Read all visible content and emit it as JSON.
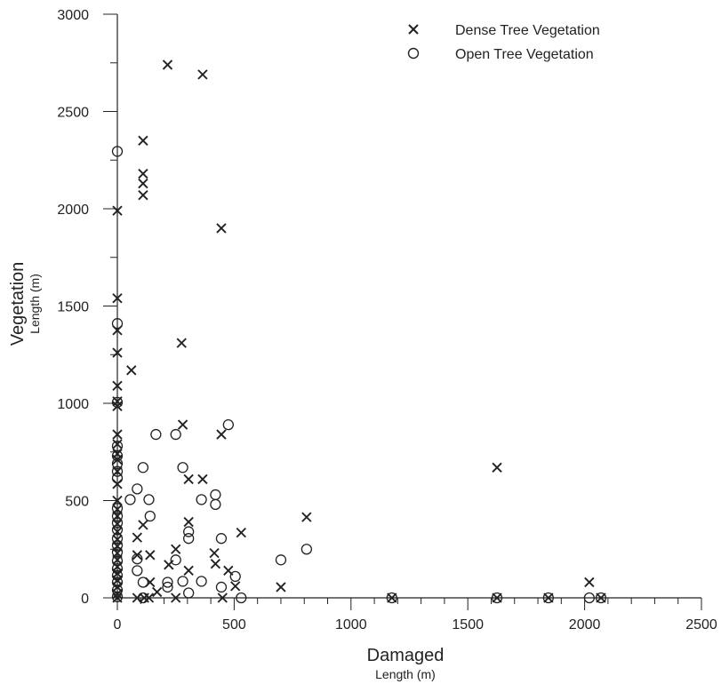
{
  "chart_data": {
    "type": "scatter",
    "xlabel": "Damaged",
    "xlabel_sub": "Length (m)",
    "ylabel": "Vegetation",
    "ylabel_sub": "Length (m)",
    "xlim": [
      0,
      2500
    ],
    "ylim": [
      0,
      3000
    ],
    "x_ticks": [
      0,
      500,
      1000,
      1500,
      2000,
      2500
    ],
    "y_ticks": [
      0,
      500,
      1000,
      1500,
      2000,
      2500,
      3000
    ],
    "grid": false,
    "legend_position": "top-right",
    "series": [
      {
        "name": "Dense Tree Vegetation",
        "marker": "x",
        "color": "#222222",
        "points": [
          [
            0,
            1990
          ],
          [
            0,
            1540
          ],
          [
            0,
            1375
          ],
          [
            0,
            1260
          ],
          [
            0,
            1090
          ],
          [
            0,
            1010
          ],
          [
            0,
            985
          ],
          [
            0,
            840
          ],
          [
            0,
            790
          ],
          [
            0,
            740
          ],
          [
            0,
            710
          ],
          [
            0,
            650
          ],
          [
            0,
            585
          ],
          [
            0,
            500
          ],
          [
            0,
            455
          ],
          [
            0,
            420
          ],
          [
            0,
            380
          ],
          [
            0,
            340
          ],
          [
            0,
            300
          ],
          [
            0,
            265
          ],
          [
            0,
            230
          ],
          [
            0,
            195
          ],
          [
            0,
            160
          ],
          [
            0,
            125
          ],
          [
            0,
            90
          ],
          [
            0,
            55
          ],
          [
            0,
            20
          ],
          [
            0,
            0
          ],
          [
            60,
            1170
          ],
          [
            85,
            310
          ],
          [
            85,
            220
          ],
          [
            85,
            0
          ],
          [
            110,
            2350
          ],
          [
            110,
            2180
          ],
          [
            110,
            2130
          ],
          [
            110,
            2070
          ],
          [
            110,
            375
          ],
          [
            115,
            0
          ],
          [
            135,
            0
          ],
          [
            140,
            220
          ],
          [
            140,
            80
          ],
          [
            170,
            30
          ],
          [
            215,
            2740
          ],
          [
            220,
            170
          ],
          [
            250,
            250
          ],
          [
            250,
            0
          ],
          [
            275,
            1310
          ],
          [
            280,
            890
          ],
          [
            305,
            610
          ],
          [
            305,
            390
          ],
          [
            305,
            140
          ],
          [
            365,
            2690
          ],
          [
            365,
            610
          ],
          [
            415,
            230
          ],
          [
            420,
            175
          ],
          [
            445,
            1900
          ],
          [
            445,
            840
          ],
          [
            450,
            0
          ],
          [
            475,
            140
          ],
          [
            505,
            60
          ],
          [
            530,
            335
          ],
          [
            700,
            55
          ],
          [
            810,
            415
          ],
          [
            1175,
            0
          ],
          [
            1625,
            670
          ],
          [
            1625,
            0
          ],
          [
            1845,
            0
          ],
          [
            2020,
            80
          ],
          [
            2070,
            0
          ]
        ]
      },
      {
        "name": "Open Tree Vegetation",
        "marker": "o",
        "color": "#222222",
        "points": [
          [
            0,
            2295
          ],
          [
            0,
            1410
          ],
          [
            0,
            1005
          ],
          [
            0,
            780
          ],
          [
            0,
            730
          ],
          [
            0,
            690
          ],
          [
            0,
            650
          ],
          [
            0,
            615
          ],
          [
            0,
            460
          ],
          [
            0,
            420
          ],
          [
            0,
            385
          ],
          [
            0,
            350
          ],
          [
            0,
            305
          ],
          [
            0,
            270
          ],
          [
            0,
            235
          ],
          [
            0,
            190
          ],
          [
            0,
            150
          ],
          [
            0,
            115
          ],
          [
            0,
            80
          ],
          [
            0,
            40
          ],
          [
            0,
            5
          ],
          [
            55,
            505
          ],
          [
            85,
            560
          ],
          [
            85,
            200
          ],
          [
            85,
            140
          ],
          [
            110,
            670
          ],
          [
            110,
            80
          ],
          [
            110,
            0
          ],
          [
            135,
            505
          ],
          [
            140,
            420
          ],
          [
            165,
            840
          ],
          [
            215,
            80
          ],
          [
            215,
            55
          ],
          [
            250,
            840
          ],
          [
            250,
            195
          ],
          [
            280,
            670
          ],
          [
            280,
            85
          ],
          [
            305,
            340
          ],
          [
            305,
            305
          ],
          [
            305,
            25
          ],
          [
            360,
            505
          ],
          [
            360,
            85
          ],
          [
            420,
            530
          ],
          [
            420,
            480
          ],
          [
            445,
            305
          ],
          [
            445,
            55
          ],
          [
            475,
            890
          ],
          [
            505,
            110
          ],
          [
            530,
            0
          ],
          [
            700,
            195
          ],
          [
            810,
            250
          ],
          [
            1175,
            0
          ],
          [
            1625,
            0
          ],
          [
            1845,
            0
          ],
          [
            2020,
            0
          ],
          [
            2070,
            0
          ]
        ]
      }
    ]
  }
}
